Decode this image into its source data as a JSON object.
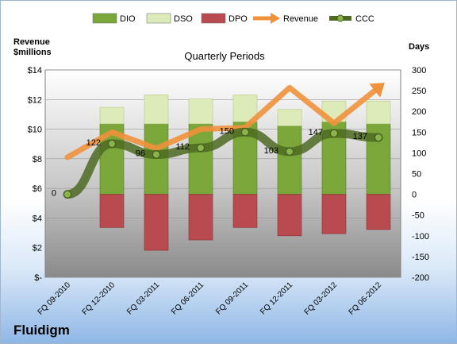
{
  "company": "Fluidigm",
  "chart_data": {
    "type": "bar",
    "title": "Quarterly Periods",
    "ylabel_left": "Revenue $millions",
    "ylabel_right": "Days",
    "categories": [
      "FQ 09-2010",
      "FQ 12-2010",
      "FQ 03-2011",
      "FQ 06-2011",
      "FQ 09-2011",
      "FQ 12-2011",
      "FQ 03-2012",
      "FQ 06-2012"
    ],
    "left_ticks": [
      "$-",
      "$2",
      "$4",
      "$6",
      "$8",
      "$10",
      "$12",
      "$14"
    ],
    "right_ticks": [
      "300",
      "250",
      "200",
      "150",
      "100",
      "50",
      "0",
      "-50",
      "-100",
      "-150",
      "-200"
    ],
    "ylim_left": [
      0,
      14
    ],
    "ylim_right": [
      -200,
      300
    ],
    "legend_position": "top",
    "series": [
      {
        "name": "DIO",
        "kind": "bar",
        "color": "#7aa63a",
        "values": [
          0,
          170,
          170,
          170,
          175,
          165,
          175,
          170
        ]
      },
      {
        "name": "DSO",
        "kind": "bar",
        "color": "#dcebb8",
        "values": [
          0,
          40,
          70,
          60,
          65,
          40,
          50,
          55
        ]
      },
      {
        "name": "DPO",
        "kind": "bar",
        "color": "#b94a50",
        "values": [
          0,
          -80,
          -135,
          -110,
          -80,
          -100,
          -95,
          -85
        ]
      },
      {
        "name": "Revenue",
        "kind": "line",
        "color": "#f0913c",
        "values": [
          8.1,
          9.8,
          8.7,
          10.0,
          10.1,
          12.8,
          10.4,
          12.8
        ]
      },
      {
        "name": "CCC",
        "kind": "line",
        "color": "#4e6a22",
        "values": [
          0,
          122,
          96,
          112,
          150,
          103,
          147,
          137
        ],
        "labels": [
          "0",
          "122",
          "96",
          "112",
          "150",
          "103",
          "147",
          "137"
        ]
      }
    ]
  }
}
